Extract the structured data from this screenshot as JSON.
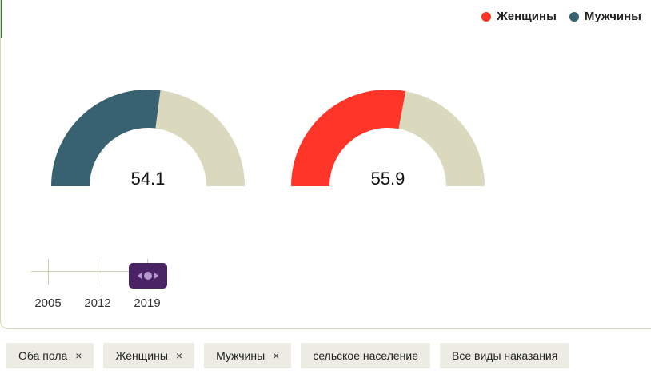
{
  "legend": {
    "women_label": "Женщины",
    "men_label": "Мужчины"
  },
  "colors": {
    "women": "#ff3529",
    "men": "#386272",
    "remainder": "#dbd9bd",
    "handle": "#4a2367"
  },
  "chart_data": {
    "type": "gauge",
    "max": 100,
    "gauges": [
      {
        "series": "Мужчины",
        "value": 54.1,
        "label": "54.1"
      },
      {
        "series": "Женщины",
        "value": 55.9,
        "label": "55.9"
      }
    ]
  },
  "timeline": {
    "years": [
      "2005",
      "2012",
      "2019"
    ],
    "selected": "2019"
  },
  "filters": {
    "chips": [
      {
        "label": "Оба пола",
        "removable": true
      },
      {
        "label": "Женщины",
        "removable": true
      },
      {
        "label": "Мужчины",
        "removable": true
      },
      {
        "label": "сельское население",
        "removable": false
      },
      {
        "label": "Все виды наказания",
        "removable": false
      }
    ],
    "remove_glyph": "×"
  }
}
